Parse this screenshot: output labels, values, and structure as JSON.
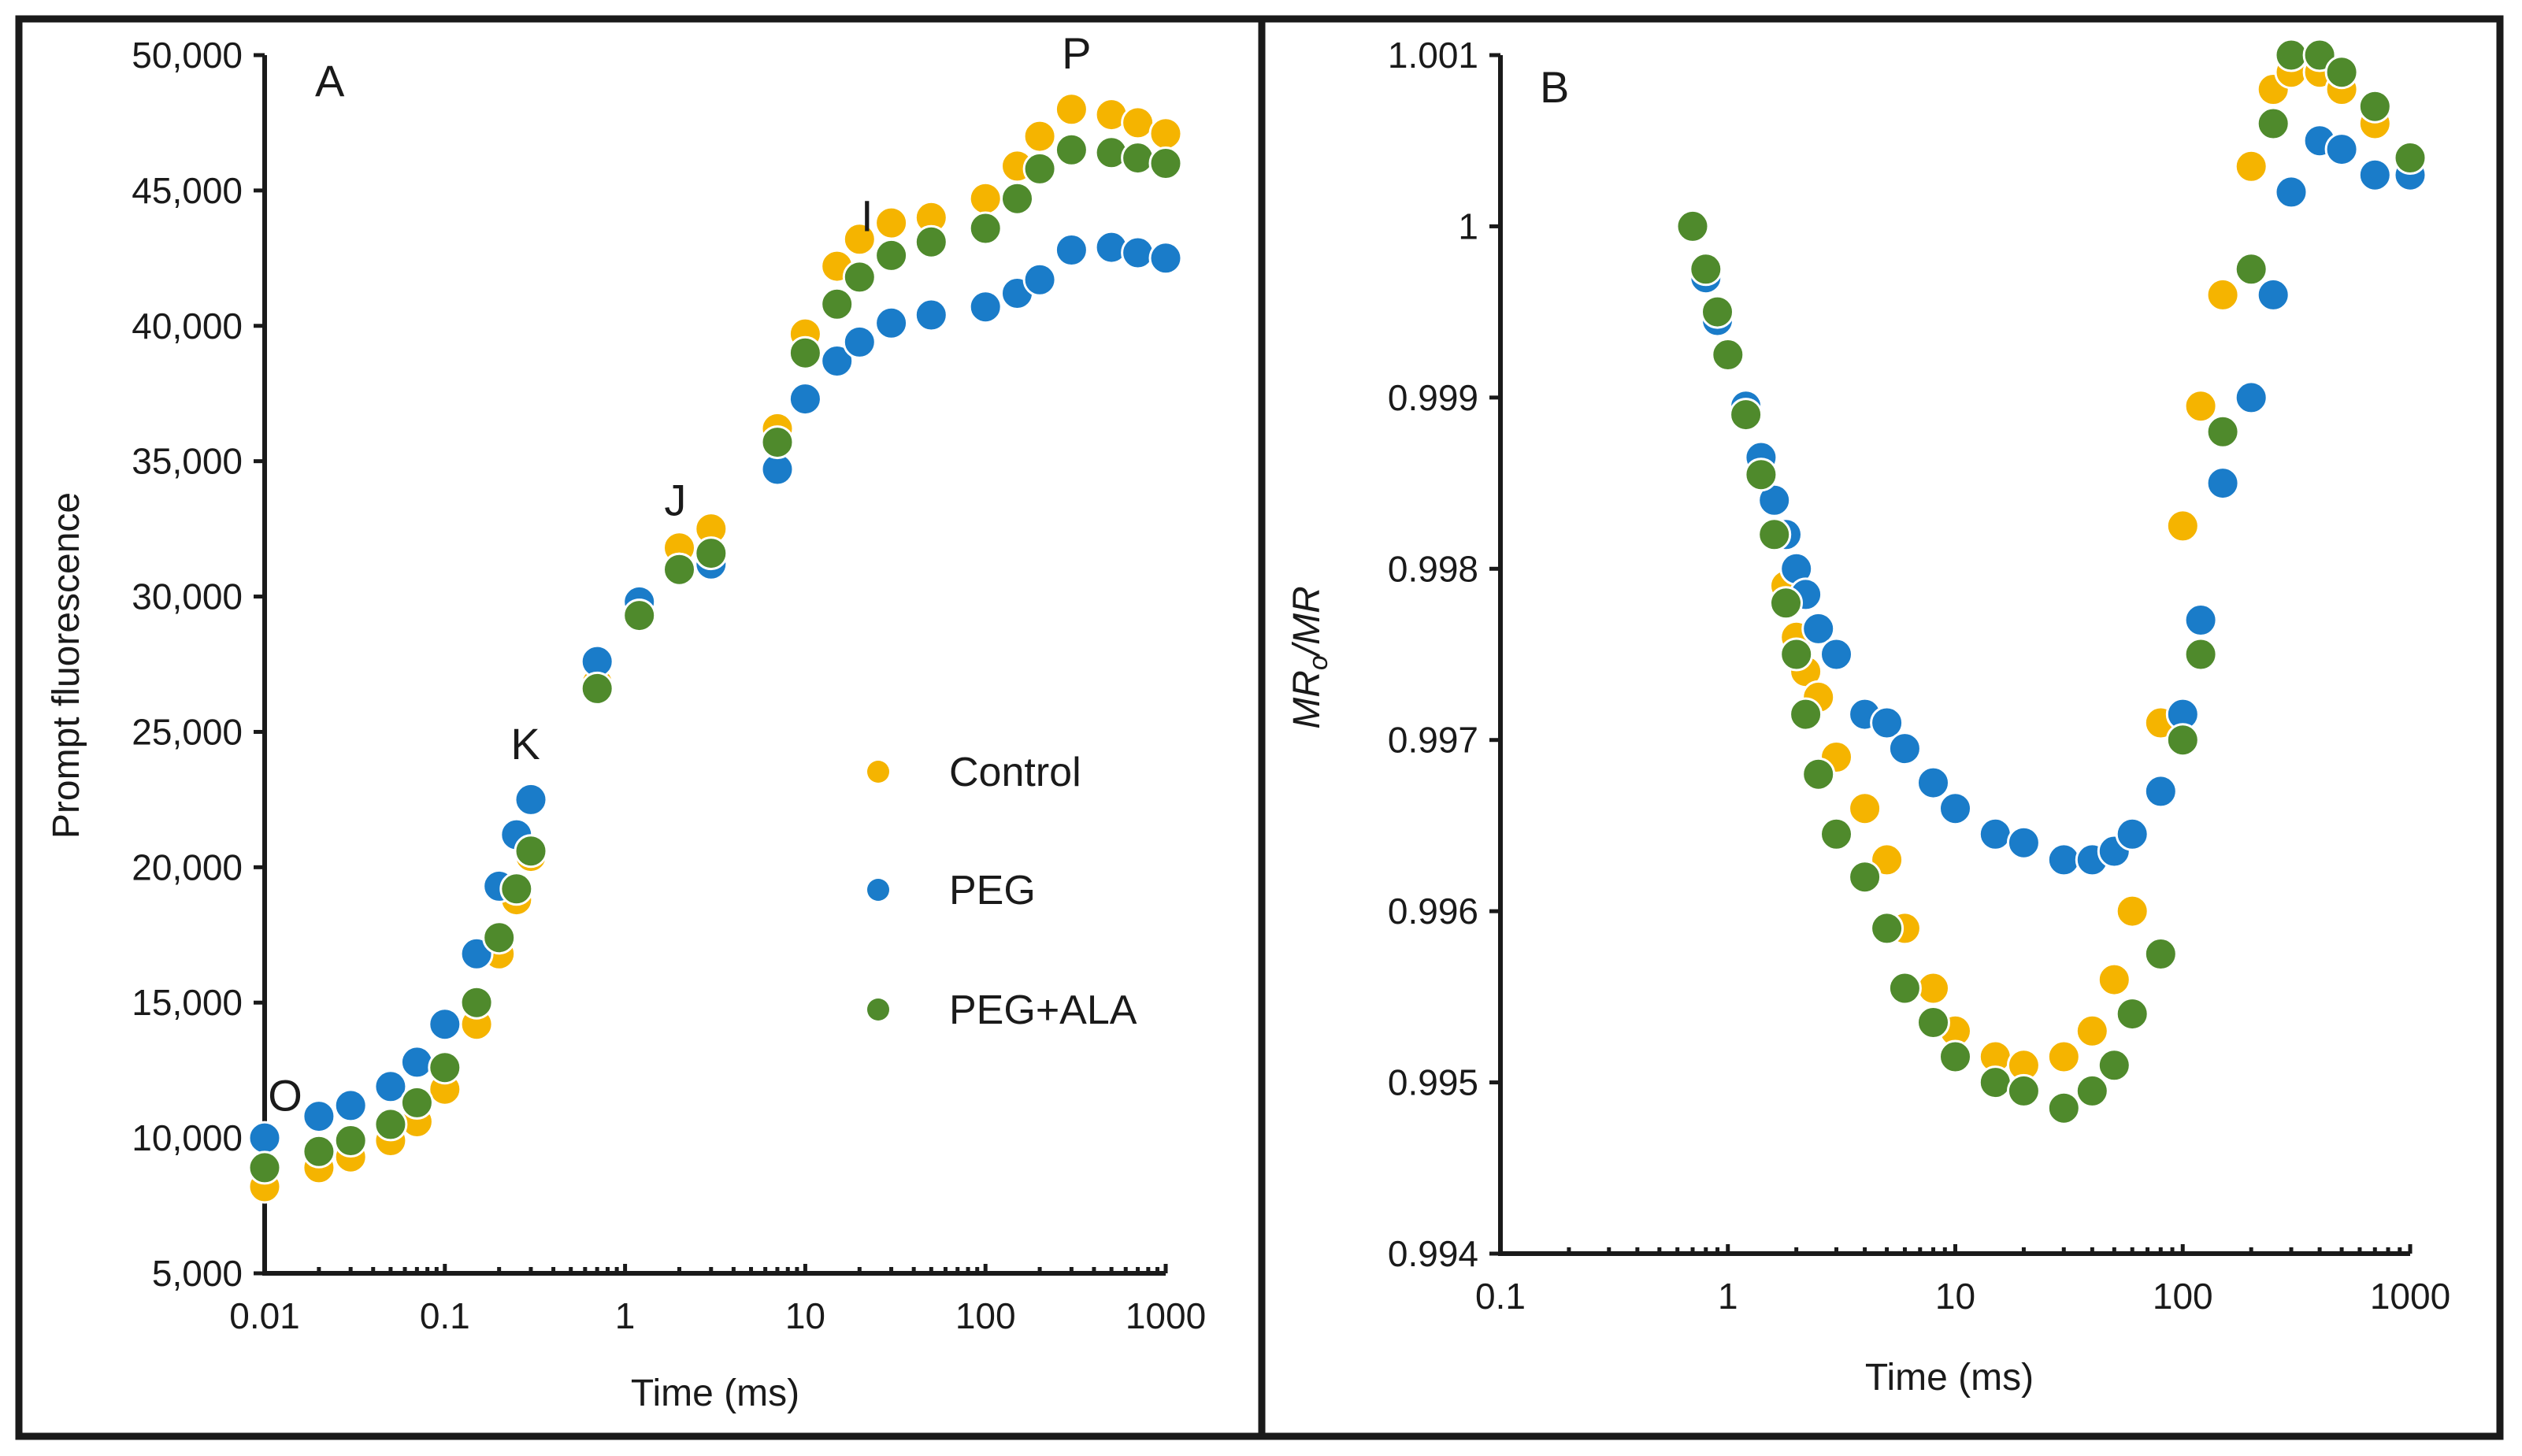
{
  "colors": {
    "Control": "#F5B400",
    "PEG": "#1A7CC9",
    "PEG+ALA": "#4F8A2C",
    "frame": "#1a1a1a"
  },
  "legend": [
    "Control",
    "PEG",
    "PEG+ALA"
  ],
  "chart_data": [
    {
      "type": "scatter",
      "panel_label": "A",
      "xscale": "log",
      "xlim": [
        0.01,
        1000
      ],
      "ylim": [
        5000,
        50000
      ],
      "xlabel": "Time (ms)",
      "ylabel": "Prompt fluorescence",
      "xtick_labels": [
        "0.01",
        "0.1",
        "1",
        "10",
        "100",
        "1000"
      ],
      "ytick_labels": [
        "5,000",
        "10,000",
        "15,000",
        "20,000",
        "25,000",
        "30,000",
        "35,000",
        "40,000",
        "45,000",
        "50,000"
      ],
      "point_labels": [
        {
          "text": "O",
          "x": 0.013,
          "y": 11000
        },
        {
          "text": "K",
          "x": 0.28,
          "y": 24000
        },
        {
          "text": "J",
          "x": 1.9,
          "y": 33000
        },
        {
          "text": "I",
          "x": 22,
          "y": 43500
        },
        {
          "text": "P",
          "x": 320,
          "y": 49500
        }
      ],
      "series": [
        {
          "name": "Control",
          "x": [
            0.01,
            0.02,
            0.03,
            0.05,
            0.07,
            0.1,
            0.15,
            0.2,
            0.25,
            0.3,
            0.7,
            1.2,
            2,
            3,
            7,
            10,
            15,
            20,
            30,
            50,
            100,
            150,
            200,
            300,
            500,
            700,
            1000
          ],
          "y": [
            8200,
            8900,
            9300,
            9900,
            10600,
            11800,
            14200,
            16800,
            18800,
            20400,
            26800,
            29500,
            31800,
            32500,
            36200,
            39700,
            42200,
            43200,
            43800,
            44000,
            44700,
            45900,
            47000,
            48000,
            47800,
            47500,
            47100
          ]
        },
        {
          "name": "PEG",
          "x": [
            0.01,
            0.02,
            0.03,
            0.05,
            0.07,
            0.1,
            0.15,
            0.2,
            0.25,
            0.3,
            0.7,
            1.2,
            2,
            3,
            7,
            10,
            15,
            20,
            30,
            50,
            100,
            150,
            200,
            300,
            500,
            700,
            1000
          ],
          "y": [
            10000,
            10800,
            11200,
            11900,
            12800,
            14200,
            16800,
            19300,
            21200,
            22500,
            27600,
            29800,
            31000,
            31200,
            34700,
            37300,
            38700,
            39400,
            40100,
            40400,
            40700,
            41200,
            41700,
            42800,
            42900,
            42700,
            42500
          ]
        },
        {
          "name": "PEG+ALA",
          "x": [
            0.01,
            0.02,
            0.03,
            0.05,
            0.07,
            0.1,
            0.15,
            0.2,
            0.25,
            0.3,
            0.7,
            1.2,
            2,
            3,
            7,
            10,
            15,
            20,
            30,
            50,
            100,
            150,
            200,
            300,
            500,
            700,
            1000
          ],
          "y": [
            8900,
            9500,
            9900,
            10500,
            11300,
            12600,
            15000,
            17400,
            19200,
            20600,
            26600,
            29300,
            31000,
            31600,
            35700,
            39000,
            40800,
            41800,
            42600,
            43100,
            43600,
            44700,
            45800,
            46500,
            46400,
            46200,
            46000
          ]
        }
      ]
    },
    {
      "type": "scatter",
      "panel_label": "B",
      "xscale": "log",
      "xlim": [
        0.1,
        1000
      ],
      "ylim": [
        0.994,
        1.001
      ],
      "xlabel": "Time (ms)",
      "ylabel": "MRo/MR",
      "xtick_labels": [
        "0.1",
        "1",
        "10",
        "100",
        "1000"
      ],
      "ytick_labels": [
        "0.994",
        "0.995",
        "0.996",
        "0.997",
        "0.998",
        "0.999",
        "1",
        "1.001"
      ],
      "series": [
        {
          "name": "Control",
          "x": [
            0.7,
            0.8,
            0.9,
            1.0,
            1.2,
            1.4,
            1.6,
            1.8,
            2.0,
            2.2,
            2.5,
            3.0,
            4,
            5,
            6,
            8,
            10,
            15,
            20,
            30,
            40,
            50,
            60,
            80,
            100,
            120,
            150,
            200,
            250,
            300,
            400,
            500,
            700,
            1000
          ],
          "y": [
            1.0,
            0.99975,
            0.9995,
            0.99925,
            0.9989,
            0.99855,
            0.9982,
            0.9979,
            0.9976,
            0.9974,
            0.99725,
            0.9969,
            0.9966,
            0.9963,
            0.9959,
            0.99555,
            0.9953,
            0.99515,
            0.9951,
            0.99515,
            0.9953,
            0.9956,
            0.996,
            0.9971,
            0.99825,
            0.99895,
            0.9996,
            1.00035,
            1.0008,
            1.0009,
            1.0009,
            1.0008,
            1.0006,
            1.0004
          ]
        },
        {
          "name": "PEG",
          "x": [
            0.7,
            0.8,
            0.9,
            1.0,
            1.2,
            1.4,
            1.6,
            1.8,
            2.0,
            2.2,
            2.5,
            3.0,
            4,
            5,
            6,
            8,
            10,
            15,
            20,
            30,
            40,
            50,
            60,
            80,
            100,
            120,
            150,
            200,
            250,
            300,
            400,
            500,
            700,
            1000
          ],
          "y": [
            1.0,
            0.9997,
            0.99945,
            0.99925,
            0.99895,
            0.99865,
            0.9984,
            0.9982,
            0.998,
            0.99785,
            0.99765,
            0.9975,
            0.99715,
            0.9971,
            0.99695,
            0.99675,
            0.9966,
            0.99645,
            0.9964,
            0.9963,
            0.9963,
            0.99635,
            0.99645,
            0.9967,
            0.99715,
            0.9977,
            0.9985,
            0.999,
            0.9996,
            1.0002,
            1.0005,
            1.00045,
            1.0003,
            1.0003
          ]
        },
        {
          "name": "PEG+ALA",
          "x": [
            0.7,
            0.8,
            0.9,
            1.0,
            1.2,
            1.4,
            1.6,
            1.8,
            2.0,
            2.2,
            2.5,
            3.0,
            4,
            5,
            6,
            8,
            10,
            15,
            20,
            30,
            40,
            50,
            60,
            80,
            100,
            120,
            150,
            200,
            250,
            300,
            400,
            500,
            700,
            1000
          ],
          "y": [
            1.0,
            0.99975,
            0.9995,
            0.99925,
            0.9989,
            0.99855,
            0.9982,
            0.9978,
            0.9975,
            0.99715,
            0.9968,
            0.99645,
            0.9962,
            0.9959,
            0.99555,
            0.99535,
            0.99515,
            0.995,
            0.99495,
            0.99485,
            0.99495,
            0.9951,
            0.9954,
            0.99575,
            0.997,
            0.9975,
            0.9988,
            0.99975,
            1.0006,
            1.001,
            1.001,
            1.0009,
            1.0007,
            1.0004
          ]
        }
      ]
    }
  ]
}
